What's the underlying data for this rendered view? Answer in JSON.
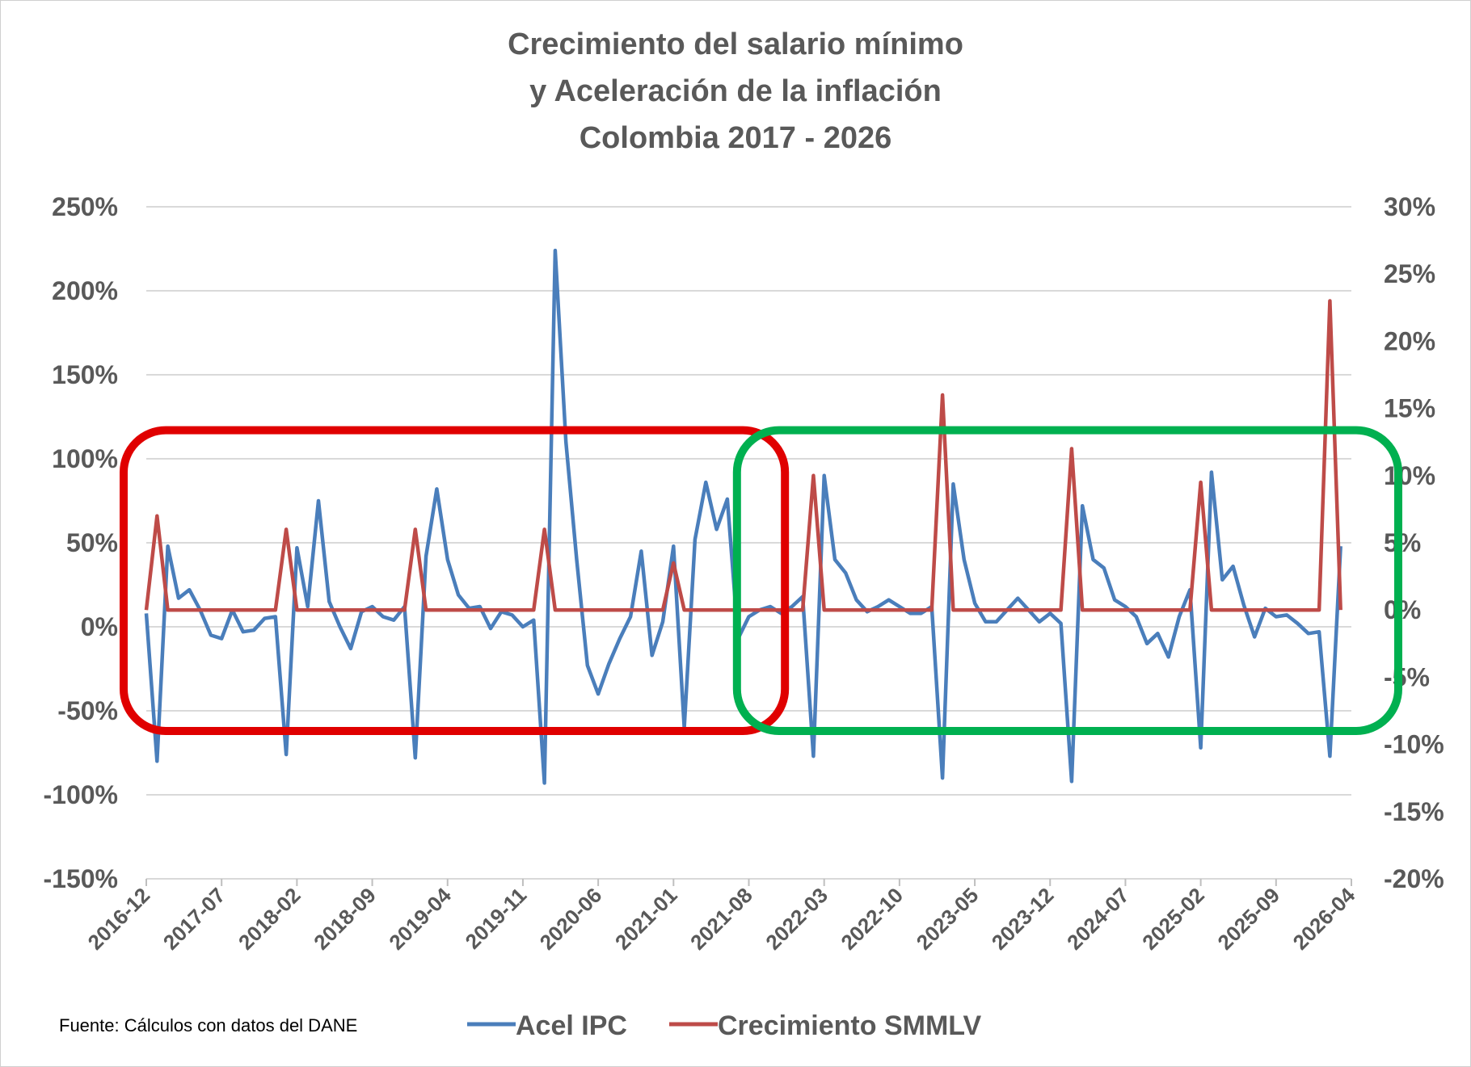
{
  "chart_data": {
    "type": "line",
    "title_lines": [
      "Crecimiento del salario mínimo",
      "y Aceleración de la inflación",
      "Colombia 2017 - 2026"
    ],
    "source_note": "Fuente: Cálculos con datos del DANE",
    "x_start": "2016-12",
    "x_ticks": [
      "2016-12",
      "2017-07",
      "2018-02",
      "2018-09",
      "2019-04",
      "2019-11",
      "2020-06",
      "2021-01",
      "2021-08",
      "2022-03",
      "2022-10",
      "2023-05",
      "2023-12",
      "2024-07",
      "2025-02",
      "2025-09",
      "2026-04"
    ],
    "left_axis": {
      "ylim": [
        -1.5,
        2.5
      ],
      "ticks": [
        "-150%",
        "-100%",
        "-50%",
        "0%",
        "50%",
        "100%",
        "150%",
        "200%",
        "250%"
      ]
    },
    "right_axis": {
      "ylim": [
        -0.2,
        0.3
      ],
      "ticks": [
        "-20%",
        "-15%",
        "-10%",
        "-5%",
        "0%",
        "5%",
        "10%",
        "15%",
        "20%",
        "25%",
        "30%"
      ]
    },
    "grid": true,
    "legend_position": "bottom",
    "series": [
      {
        "name": "Acel IPC",
        "axis": "left",
        "color": "#4a7ebb",
        "values": [
          0.08,
          -0.8,
          0.48,
          0.17,
          0.22,
          0.1,
          -0.05,
          -0.07,
          0.1,
          -0.03,
          -0.02,
          0.05,
          0.06,
          -0.76,
          0.47,
          0.12,
          0.75,
          0.15,
          0.0,
          -0.13,
          0.09,
          0.12,
          0.06,
          0.04,
          0.12,
          -0.78,
          0.42,
          0.82,
          0.4,
          0.19,
          0.11,
          0.12,
          -0.01,
          0.09,
          0.07,
          0.0,
          0.04,
          -0.93,
          2.24,
          1.1,
          0.4,
          -0.23,
          -0.4,
          -0.22,
          -0.07,
          0.06,
          0.45,
          -0.17,
          0.03,
          0.48,
          -0.6,
          0.52,
          0.86,
          0.58,
          0.76,
          -0.07,
          0.06,
          0.1,
          0.12,
          0.08,
          0.12,
          0.18,
          -0.77,
          0.9,
          0.4,
          0.32,
          0.16,
          0.09,
          0.12,
          0.16,
          0.12,
          0.08,
          0.08,
          0.12,
          -0.9,
          0.85,
          0.4,
          0.14,
          0.03,
          0.03,
          0.1,
          0.17,
          0.1,
          0.03,
          0.08,
          0.02,
          -0.92,
          0.72,
          0.4,
          0.35,
          0.16,
          0.12,
          0.06,
          -0.1,
          -0.04,
          -0.18,
          0.06,
          0.22,
          -0.72,
          0.92,
          0.28,
          0.36,
          0.13,
          -0.06,
          0.11,
          0.06,
          0.07,
          0.02,
          -0.04,
          -0.03,
          -0.77,
          0.48
        ]
      },
      {
        "name": "Crecimiento SMMLV",
        "axis": "right",
        "color": "#be4b48",
        "values": [
          0,
          0.07,
          0,
          0,
          0,
          0,
          0,
          0,
          0,
          0,
          0,
          0,
          0,
          0.06,
          0,
          0,
          0,
          0,
          0,
          0,
          0,
          0,
          0,
          0,
          0,
          0.06,
          0,
          0,
          0,
          0,
          0,
          0,
          0,
          0,
          0,
          0,
          0,
          0.06,
          0,
          0,
          0,
          0,
          0,
          0,
          0,
          0,
          0,
          0,
          0,
          0.035,
          0,
          0,
          0,
          0,
          0,
          0,
          0,
          0,
          0,
          0,
          0,
          0,
          0.1,
          0,
          0,
          0,
          0,
          0,
          0,
          0,
          0,
          0,
          0,
          0,
          0.16,
          0,
          0,
          0,
          0,
          0,
          0,
          0,
          0,
          0,
          0,
          0,
          0.12,
          0,
          0,
          0,
          0,
          0,
          0,
          0,
          0,
          0,
          0,
          0,
          0.095,
          0,
          0,
          0,
          0,
          0,
          0,
          0,
          0,
          0,
          0,
          0,
          0.23,
          0
        ]
      }
    ],
    "highlight_boxes": [
      {
        "color": "#e00000",
        "from_index": 0,
        "to_index": 55,
        "left_range": [
          -0.62,
          1.17
        ]
      },
      {
        "color": "#00b050",
        "from_index": 57,
        "to_index": 112,
        "left_range": [
          -0.62,
          1.17
        ]
      }
    ]
  }
}
